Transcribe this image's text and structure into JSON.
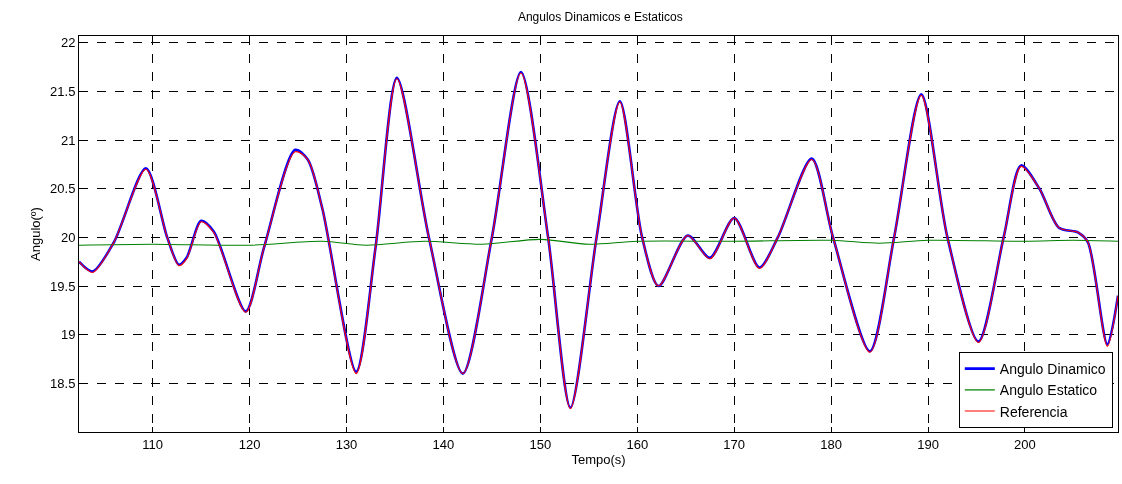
{
  "chart_data": {
    "type": "line",
    "title": "Angulos Dinamicos e Estaticos",
    "xlabel": "Tempo(s)",
    "ylabel": "Angulo(º)",
    "xlim": [
      102.4,
      209.6
    ],
    "ylim": [
      18,
      22.07
    ],
    "xticks": [
      110,
      120,
      130,
      140,
      150,
      160,
      170,
      180,
      190,
      200
    ],
    "yticks": [
      18.5,
      19,
      19.5,
      20,
      20.5,
      21,
      21.5,
      22
    ],
    "grid": true,
    "legend": "bottom right",
    "line_style": "solid",
    "marker": "none",
    "series": [
      {
        "name": "Angulo Dinamico",
        "color": "#0000ff",
        "x": [
          102.4,
          103.8,
          106,
          109.3,
          111.5,
          112.7,
          113.5,
          115,
          116.3,
          119.6,
          121.5,
          124.7,
          126,
          127.5,
          131,
          133,
          135.2,
          138.5,
          142,
          145,
          148,
          150.8,
          153.1,
          155.8,
          158.2,
          160.5,
          162.2,
          165.2,
          167.5,
          170,
          172.6,
          174.5,
          178,
          180.2,
          184,
          186.5,
          189.3,
          192,
          195.2,
          197.8,
          199.6,
          201.5,
          203.5,
          205.5,
          206.5,
          208.5,
          209.6
        ],
        "values": [
          19.75,
          19.65,
          19.95,
          20.71,
          20.0,
          19.72,
          19.79,
          20.17,
          20.06,
          19.24,
          19.9,
          20.9,
          20.8,
          20.3,
          18.62,
          19.9,
          21.64,
          20.0,
          18.6,
          20.0,
          21.7,
          20.0,
          18.25,
          20.0,
          21.4,
          20.0,
          19.5,
          20.02,
          19.79,
          20.2,
          19.69,
          20.0,
          20.81,
          20.0,
          18.83,
          20.0,
          21.47,
          20.0,
          18.93,
          20.0,
          20.74,
          20.5,
          20.1,
          20.05,
          19.95,
          18.9,
          19.4
        ]
      },
      {
        "name": "Angulo Estatico",
        "color": "#008000",
        "x": [
          102.4,
          110,
          120,
          127.5,
          132,
          138,
          144,
          150,
          155,
          160,
          170,
          180,
          185,
          190,
          200,
          205,
          209.6
        ],
        "values": [
          19.92,
          19.93,
          19.92,
          19.96,
          19.92,
          19.96,
          19.93,
          19.98,
          19.93,
          19.96,
          19.96,
          19.97,
          19.94,
          19.97,
          19.96,
          19.97,
          19.96
        ]
      },
      {
        "name": "Referencia",
        "color": "#ff0000",
        "x": [
          102.4,
          103.8,
          106,
          109.3,
          111.5,
          112.7,
          113.5,
          115,
          116.3,
          119.6,
          121.5,
          124.7,
          126,
          127.5,
          131,
          133,
          135.2,
          138.5,
          142,
          145,
          148,
          150.8,
          153.1,
          155.8,
          158.2,
          160.5,
          162.2,
          165.2,
          167.5,
          170,
          172.6,
          174.5,
          178,
          180.2,
          184,
          186.5,
          189.3,
          192,
          195.2,
          197.8,
          199.6,
          201.5,
          203.5,
          205.5,
          206.5,
          208.5,
          209.6
        ],
        "values": [
          19.75,
          19.64,
          19.95,
          20.7,
          20.0,
          19.71,
          19.78,
          20.16,
          20.05,
          19.23,
          19.9,
          20.88,
          20.8,
          20.3,
          18.6,
          19.9,
          21.63,
          20.0,
          18.6,
          20.0,
          21.69,
          20.0,
          18.24,
          20.0,
          21.39,
          20.0,
          19.5,
          20.02,
          19.78,
          20.2,
          19.68,
          20.0,
          20.8,
          20.0,
          18.82,
          20.0,
          21.46,
          20.0,
          18.92,
          20.0,
          20.73,
          20.5,
          20.1,
          20.05,
          19.95,
          18.88,
          19.4
        ]
      }
    ]
  }
}
